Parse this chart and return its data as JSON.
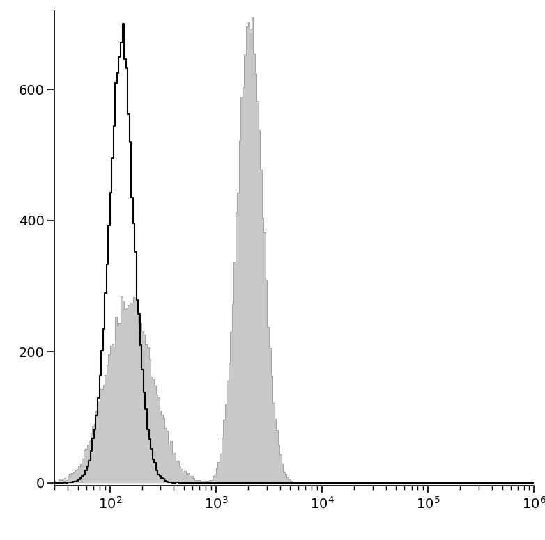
{
  "xlim": [
    30,
    1000000
  ],
  "ylim": [
    -5,
    720
  ],
  "yticks": [
    0,
    200,
    400,
    600
  ],
  "background_color": "#ffffff",
  "black_hist": {
    "log_mean": 2.11,
    "log_std": 0.13,
    "noise_std": 0.04,
    "peak_scale": 700,
    "color": "#000000",
    "linewidth": 1.5
  },
  "gray_hist": {
    "pop1_log_mean": 2.18,
    "pop1_log_std": 0.22,
    "pop1_weight": 0.42,
    "pop2_log_mean": 3.32,
    "pop2_log_std": 0.12,
    "pop2_weight": 0.58,
    "peak_scale": 710,
    "fill_color": "#c8c8c8",
    "edge_color": "#a0a0a0",
    "linewidth": 0.7
  },
  "n_bins": 300,
  "log_xmin": 1.0,
  "log_xmax": 6.0,
  "figsize": [
    7.82,
    7.76
  ],
  "dpi": 100
}
